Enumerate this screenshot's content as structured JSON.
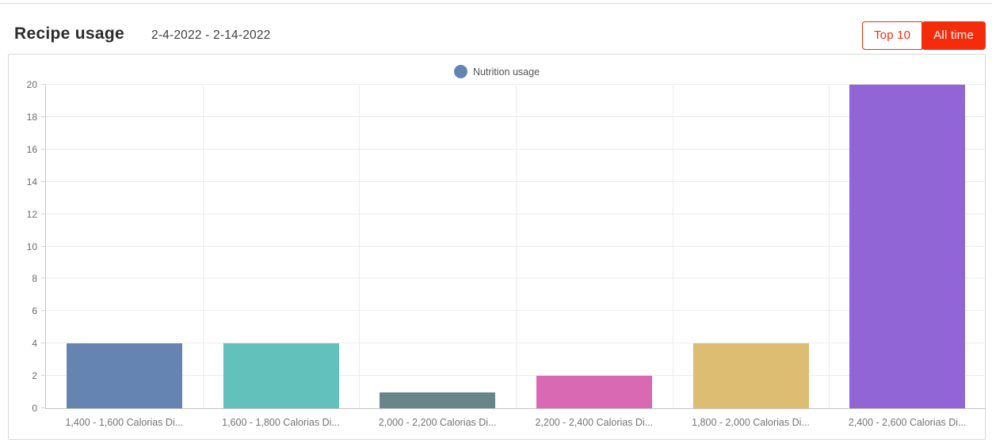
{
  "header": {
    "title": "Recipe usage",
    "date_range": "2-4-2022  -  2-14-2022",
    "buttons": {
      "top10": "Top 10",
      "all_time": "All time"
    }
  },
  "colors": {
    "accent_red": "#f42c0c",
    "legend_marker": "#6684b2",
    "grid_line": "#ececec",
    "axis_line": "#c2c2c2",
    "bar_colors": [
      "#6684b2",
      "#62c1ba",
      "#68868a",
      "#d969b2",
      "#dcbd72",
      "#9165d6"
    ]
  },
  "chart_data": {
    "type": "bar",
    "title": "Recipe usage",
    "legend": {
      "label": "Nutrition usage",
      "position": "top"
    },
    "categories": [
      "1,400 - 1,600 Calorias Di...",
      "1,600 - 1,800 Calorias Di...",
      "2,000 - 2,200 Calorias Di...",
      "2,200 - 2,400 Calorias Di...",
      "1,800 - 2,000 Calorias Di...",
      "2,400 - 2,600 Calorias Di..."
    ],
    "series": [
      {
        "name": "Nutrition usage",
        "values": [
          4,
          4,
          1,
          2,
          4,
          20
        ]
      }
    ],
    "ylim": [
      0,
      20
    ],
    "yticks": [
      0,
      2,
      4,
      6,
      8,
      10,
      12,
      14,
      16,
      18,
      20
    ],
    "grid": true,
    "xlabel": "",
    "ylabel": ""
  }
}
